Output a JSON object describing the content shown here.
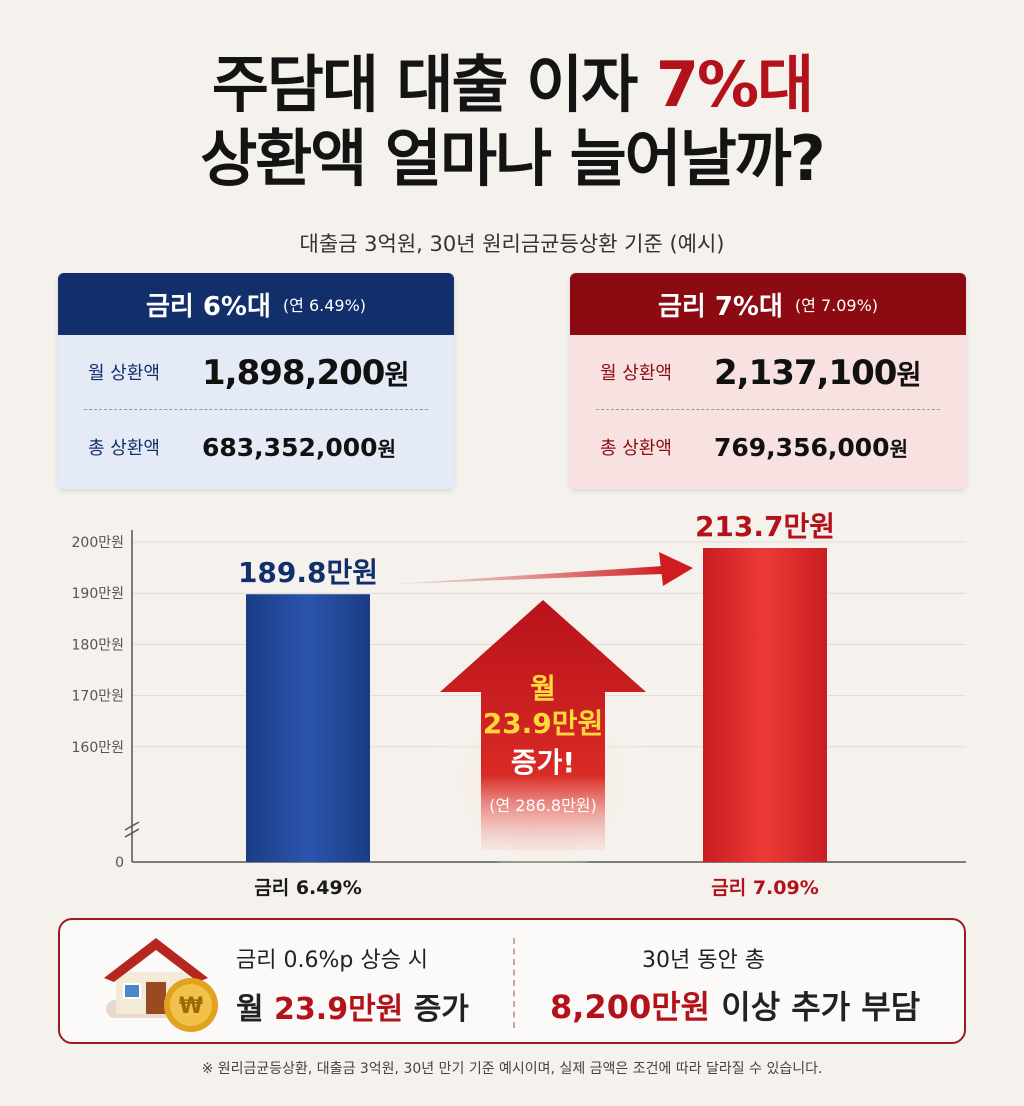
{
  "title": {
    "line1_prefix": "주담대 대출 이자 ",
    "line1_accent": "7%대",
    "line2": "상환액 얼마나 늘어날까?"
  },
  "subtitle": "대출금 3억원, 30년 원리금균등상환 기준 (예시)",
  "cards": {
    "low": {
      "head_big": "금리 6%대",
      "head_small": "(연 6.49%)",
      "monthly_label": "월 상환액",
      "monthly_value": "1,898,200",
      "monthly_unit": "원",
      "total_label": "총 상환액",
      "total_value": "683,352,000",
      "total_unit": "원",
      "color": "#132f6b"
    },
    "high": {
      "head_big": "금리 7%대",
      "head_small": "(연 7.09%)",
      "monthly_label": "월 상환액",
      "monthly_value": "2,137,100",
      "monthly_unit": "원",
      "total_label": "총 상환액",
      "total_value": "769,356,000",
      "total_unit": "원",
      "color": "#8c0b12"
    }
  },
  "chart_data": {
    "type": "bar",
    "categories": [
      "금리 6.49%",
      "금리 7.09%"
    ],
    "values": [
      189.8,
      213.7
    ],
    "value_labels": [
      "189.8만원",
      "213.7만원"
    ],
    "colors": [
      "#1d3f8a",
      "#d8262a"
    ],
    "y_ticks": [
      0,
      160,
      170,
      180,
      190,
      200
    ],
    "y_tick_labels": [
      "0",
      "160만원",
      "170만원",
      "180만원",
      "190만원",
      "200만원"
    ],
    "ylim": [
      150,
      200
    ],
    "axis_break": true,
    "grid": true,
    "annotation": {
      "line1": "월",
      "line2": "23.9만원",
      "line3": "증가!",
      "line4": "(연 286.8만원)"
    }
  },
  "summary": {
    "left_line1": "금리 0.6%p 상승 시",
    "left_line2_prefix": "월 ",
    "left_line2_value": "23.9만원",
    "left_line2_suffix": " 증가",
    "right_line1": "30년 동안 총",
    "right_line2_value": "8,200만원",
    "right_line2_suffix": " 이상 추가 부담",
    "icons": [
      "house-icon",
      "won-coin-icon"
    ],
    "coin_symbol": "₩"
  },
  "footnote": "※ 원리금균등상환, 대출금 3억원, 30년 만기 기준 예시이며, 실제 금액은 조건에 따라 달라질 수 있습니다."
}
